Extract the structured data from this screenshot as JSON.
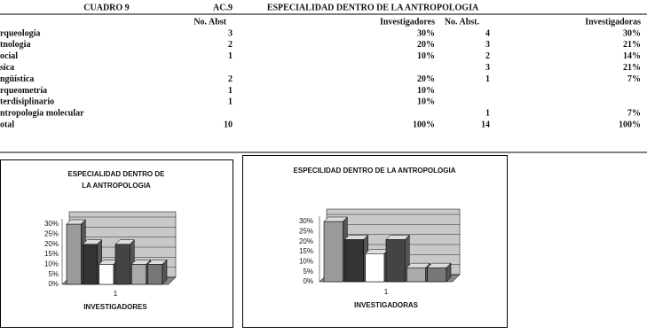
{
  "header": {
    "cuadro": "CUADRO 9",
    "code": "AC.9",
    "title": "ESPECIALIDAD DENTRO DE LA ANTROPOLOGIA"
  },
  "table": {
    "columns": [
      "No. Abst",
      "Investigadores",
      "No. Abst.",
      "Investigadoras"
    ],
    "rows": [
      [
        "rqueología",
        "3",
        "30%",
        "4",
        "30%"
      ],
      [
        "tnologia",
        "2",
        "20%",
        "3",
        "21%"
      ],
      [
        "ocial",
        "1",
        "10%",
        "2",
        "14%"
      ],
      [
        "sica",
        null,
        null,
        "3",
        "21%"
      ],
      [
        "ngüística",
        "2",
        "20%",
        "1",
        "7%"
      ],
      [
        "rqueometría",
        "1",
        "10%",
        null,
        null
      ],
      [
        "terdisiplinario",
        "1",
        "10%",
        null,
        null
      ],
      [
        "ntropologia molecular",
        null,
        null,
        "1",
        "7%"
      ],
      [
        "otal",
        "10",
        "100%",
        "14",
        "100%"
      ]
    ]
  },
  "charts": [
    {
      "type": "bar",
      "title": "ESPECIALIDAD DENTRO DE LA ANTROPOLOGIA",
      "category": "1",
      "xlabel": "INVESTIGADORES",
      "ylim": [
        0,
        30
      ],
      "yticks": [
        {
          "value": 0,
          "label": "0%"
        },
        {
          "value": 5,
          "label": "5%"
        },
        {
          "value": 10,
          "label": "10%"
        },
        {
          "value": 15,
          "label": "15%"
        },
        {
          "value": 20,
          "label": "20%"
        },
        {
          "value": 25,
          "label": "25%"
        },
        {
          "value": 30,
          "label": "30%"
        }
      ],
      "values": [
        30,
        20,
        10,
        20,
        10,
        10
      ]
    },
    {
      "type": "bar",
      "title": "ESPECILIDAD DENTRO DE LA ANTROPOLOGIA",
      "category": "1",
      "xlabel": "INVESTIGADORAS",
      "ylim": [
        0,
        30
      ],
      "yticks": [
        {
          "value": 0,
          "label": "0%"
        },
        {
          "value": 5,
          "label": "5%"
        },
        {
          "value": 10,
          "label": "10%"
        },
        {
          "value": 15,
          "label": "15%"
        },
        {
          "value": 20,
          "label": "20%"
        },
        {
          "value": 25,
          "label": "25%"
        },
        {
          "value": 30,
          "label": "30%"
        }
      ],
      "values": [
        30,
        21,
        14,
        21,
        7,
        7
      ]
    }
  ]
}
